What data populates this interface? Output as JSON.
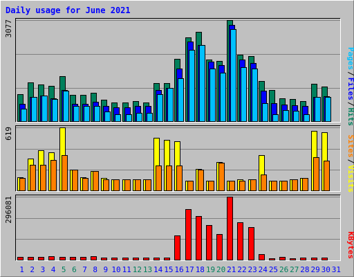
{
  "chart_data": [
    {
      "type": "bar",
      "title": "Daily usage for June 2021",
      "separator": "/",
      "ylim": [
        0,
        3077
      ],
      "yticks": [
        3077
      ],
      "series": [
        {
          "name": "Hits",
          "color": "#00805c",
          "values": [
            843,
            1201,
            1138,
            1096,
            1391,
            822,
            822,
            885,
            674,
            590,
            590,
            632,
            590,
            1180,
            1180,
            1897,
            2550,
            2719,
            1876,
            1834,
            3077,
            2023,
            1981,
            1243,
            969,
            717,
            695,
            632,
            1159,
            1075,
            0
          ]
        },
        {
          "name": "Files",
          "color": "#0000ff",
          "values": [
            548,
            759,
            801,
            717,
            969,
            548,
            548,
            611,
            485,
            443,
            443,
            485,
            485,
            969,
            1033,
            1602,
            2424,
            2318,
            1813,
            1707,
            2929,
            1876,
            1770,
            948,
            569,
            527,
            506,
            485,
            759,
            780,
            0
          ]
        },
        {
          "name": "Pages",
          "color": "#00c0ff",
          "values": [
            400,
            759,
            801,
            695,
            948,
            485,
            485,
            485,
            316,
            232,
            232,
            274,
            274,
            843,
            1033,
            1328,
            2171,
            2318,
            1602,
            1496,
            2803,
            1644,
            1602,
            569,
            232,
            358,
            337,
            232,
            759,
            759,
            0
          ]
        }
      ]
    },
    {
      "type": "bar",
      "separator": "/",
      "ylim": [
        0,
        619
      ],
      "yticks": [
        619
      ],
      "series": [
        {
          "name": "Visits",
          "color": "#ffff00",
          "values": [
            133,
            319,
            399,
            379,
            619,
            206,
            133,
            193,
            126,
            113,
            113,
            113,
            113,
            519,
            499,
            486,
            100,
            213,
            100,
            280,
            100,
            113,
            113,
            353,
            100,
            100,
            113,
            126,
            586,
            572,
            0
          ]
        },
        {
          "name": "Sites",
          "color": "#ff8000",
          "values": [
            126,
            253,
            253,
            300,
            353,
            206,
            126,
            193,
            113,
            113,
            113,
            113,
            113,
            246,
            246,
            246,
            100,
            206,
            100,
            273,
            100,
            100,
            113,
            160,
            100,
            100,
            113,
            126,
            333,
            293,
            0
          ]
        }
      ]
    },
    {
      "type": "bar",
      "ylim": [
        0,
        296081
      ],
      "yticks": [
        296081
      ],
      "series": [
        {
          "name": "KBytes",
          "color": "#ff0000",
          "values": [
            16091,
            16091,
            16091,
            19310,
            16091,
            16091,
            16091,
            19310,
            12873,
            12873,
            12873,
            12873,
            12873,
            12873,
            12873,
            115858,
            238152,
            205969,
            164132,
            122294,
            296081,
            177005,
            154477,
            28965,
            9655,
            16091,
            9655,
            12873,
            12873,
            12873,
            0
          ]
        }
      ],
      "categories": [
        "1",
        "2",
        "3",
        "4",
        "5",
        "6",
        "7",
        "8",
        "9",
        "10",
        "11",
        "12",
        "13",
        "14",
        "15",
        "16",
        "17",
        "18",
        "19",
        "20",
        "21",
        "22",
        "23",
        "24",
        "25",
        "26",
        "27",
        "28",
        "29",
        "30",
        "31"
      ],
      "category_colors": [
        "#0000ff",
        "#0000ff",
        "#0000ff",
        "#0000ff",
        "#00805c",
        "#00805c",
        "#0000ff",
        "#0000ff",
        "#0000ff",
        "#0000ff",
        "#0000ff",
        "#00805c",
        "#00805c",
        "#0000ff",
        "#0000ff",
        "#0000ff",
        "#0000ff",
        "#0000ff",
        "#00805c",
        "#00805c",
        "#0000ff",
        "#0000ff",
        "#0000ff",
        "#0000ff",
        "#0000ff",
        "#00805c",
        "#00805c",
        "#0000ff",
        "#0000ff",
        "#0000ff",
        "#0000ff"
      ]
    }
  ]
}
